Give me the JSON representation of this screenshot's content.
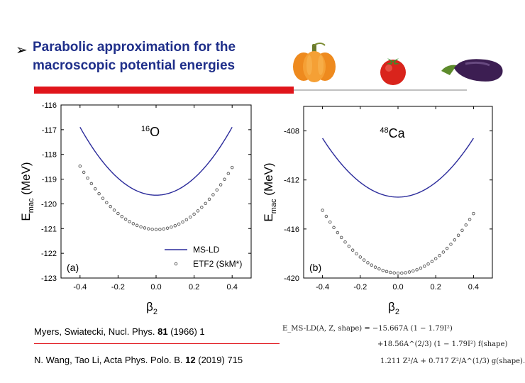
{
  "title": {
    "line1": "Parabolic approximation for the",
    "line2": "macroscopic potential energies"
  },
  "icons": [
    "pumpkin-icon",
    "tomato-icon",
    "eggplant-icon"
  ],
  "colors": {
    "title": "#1f2f8a",
    "accent_bar": "#e0151b",
    "ms_ld": "#2b2b9b",
    "etf2": "#555555"
  },
  "chart_data": [
    {
      "type": "line",
      "panel_label": "(a)",
      "nucleus_mass": "16",
      "nucleus_symbol": "O",
      "ylabel": "E",
      "ylabel_sub": "mac",
      "ylabel_unit": " (MeV)",
      "xlabel": "β",
      "xlabel_sub": "2",
      "xlim": [
        -0.5,
        0.5
      ],
      "ylim": [
        -123,
        -116
      ],
      "xticks": [
        -0.4,
        -0.2,
        0.0,
        0.2,
        0.4
      ],
      "xtick_labels": [
        "-0.4",
        "-0.2",
        "0.0",
        "0.2",
        "0.4"
      ],
      "yticks": [
        -123,
        -122,
        -121,
        -120,
        -119,
        -118,
        -117,
        -116
      ],
      "ytick_labels": [
        "-123",
        "-122",
        "-121",
        "-120",
        "-119",
        "-118",
        "-117",
        "-116"
      ],
      "legend": {
        "ms_ld": "MS-LD",
        "etf2": "ETF2 (SkM*)"
      },
      "legend_position": "lower-right",
      "series": [
        {
          "name": "MS-LD",
          "style": "line",
          "x": [
            -0.4,
            -0.3,
            -0.2,
            -0.1,
            0.0,
            0.1,
            0.2,
            0.3,
            0.4
          ],
          "y": [
            -116.9,
            -118.1,
            -118.96,
            -119.48,
            -119.65,
            -119.48,
            -118.96,
            -118.1,
            -116.9
          ]
        },
        {
          "name": "ETF2 (SkM*)",
          "style": "markers",
          "x": [
            -0.4,
            -0.3,
            -0.2,
            -0.1,
            0.0,
            0.1,
            0.2,
            0.3,
            0.4
          ],
          "y": [
            -118.45,
            -119.6,
            -120.43,
            -120.88,
            -121.0,
            -120.88,
            -120.43,
            -119.6,
            -118.55
          ]
        }
      ]
    },
    {
      "type": "line",
      "panel_label": "(b)",
      "nucleus_mass": "48",
      "nucleus_symbol": "Ca",
      "ylabel": "E",
      "ylabel_sub": "mac",
      "ylabel_unit": " (MeV)",
      "xlabel": "β",
      "xlabel_sub": "2",
      "xlim": [
        -0.5,
        0.5
      ],
      "ylim": [
        -420,
        -406
      ],
      "xticks": [
        -0.4,
        -0.2,
        0.0,
        0.2,
        0.4
      ],
      "xtick_labels": [
        "-0.4",
        "-0.2",
        "0.0",
        "0.2",
        "0.4"
      ],
      "yticks": [
        -420,
        -416,
        -412,
        -408
      ],
      "ytick_labels": [
        "-420",
        "-416",
        "-412",
        "-408"
      ],
      "series": [
        {
          "name": "MS-LD",
          "style": "line",
          "x": [
            -0.4,
            -0.3,
            -0.2,
            -0.1,
            0.0,
            0.1,
            0.2,
            0.3,
            0.4
          ],
          "y": [
            -408.6,
            -410.7,
            -412.2,
            -413.1,
            -413.4,
            -413.1,
            -412.2,
            -410.7,
            -408.6
          ]
        },
        {
          "name": "ETF2 (SkM*)",
          "style": "markers",
          "x": [
            -0.4,
            -0.3,
            -0.2,
            -0.1,
            0.0,
            0.1,
            0.2,
            0.3,
            0.4
          ],
          "y": [
            -414.4,
            -416.7,
            -418.4,
            -419.3,
            -419.6,
            -419.3,
            -418.4,
            -416.7,
            -414.9
          ]
        }
      ]
    }
  ],
  "references": {
    "ref1_pre": "Myers, Swiatecki, Nucl. Phys. ",
    "ref1_vol": "81",
    "ref1_post": " (1966) 1",
    "ref2_pre": "N. Wang, Tao Li, Acta Phys. Polo. B. ",
    "ref2_vol": "12",
    "ref2_post": " (2019) 715"
  },
  "formula": {
    "line1": "E_MS-LD(A, Z, shape) = −15.667A (1 − 1.79I²)",
    "line2": "+18.56A^(2/3) (1 − 1.79I²) f(shape)",
    "line3": "1.211 Z²/A + 0.717 Z²/A^(1/3) g(shape)."
  }
}
